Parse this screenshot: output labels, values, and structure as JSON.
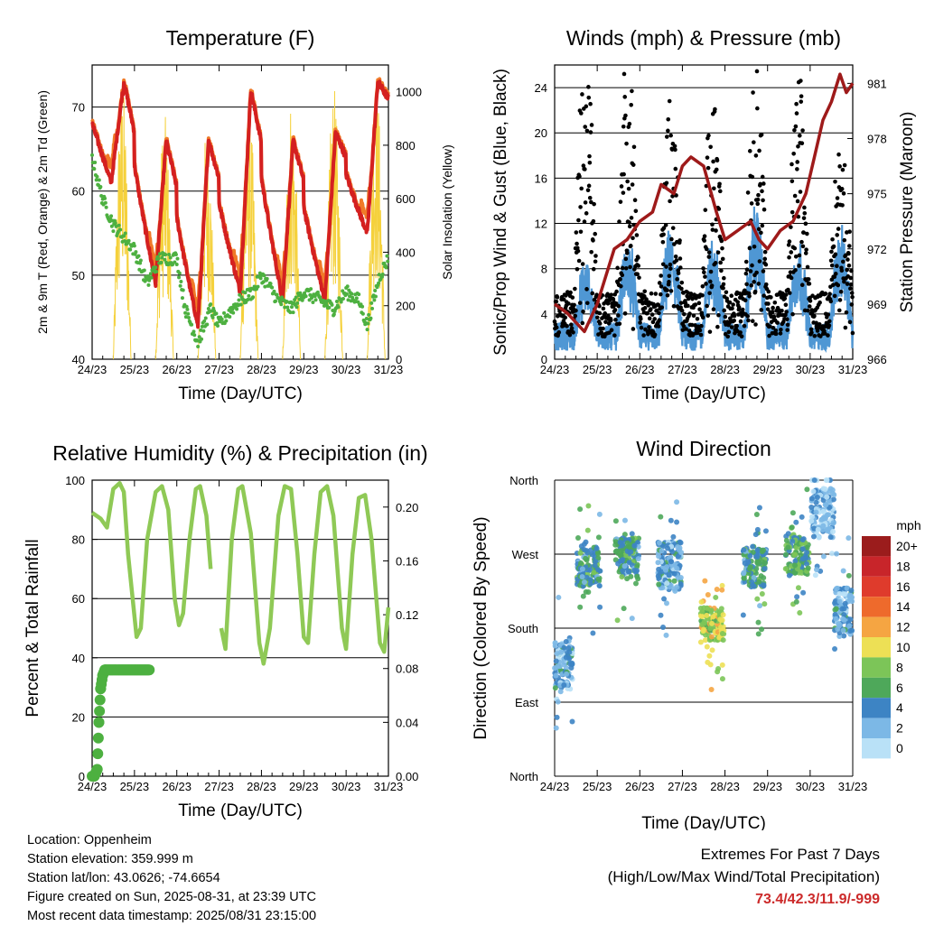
{
  "chart_data": [
    {
      "id": "temperature",
      "type": "line",
      "title": "Temperature (F)",
      "xlabel": "Time (Day/UTC)",
      "ylabel": "2m & 9m T (Red, Orange) & 2m Td (Green)",
      "y2label": "Solar Insolation (Yellow)",
      "x_ticks": [
        "24/23",
        "25/23",
        "26/23",
        "27/23",
        "28/23",
        "29/23",
        "30/23",
        "31/23"
      ],
      "ylim": [
        40,
        75
      ],
      "y_ticks": [
        40,
        50,
        60,
        70
      ],
      "y2lim": [
        0,
        1100
      ],
      "y2_ticks": [
        0,
        200,
        400,
        600,
        800,
        1000
      ],
      "grid_y": [
        40,
        50,
        60,
        70
      ],
      "series": [
        {
          "key": "t2m",
          "color": "#d42020",
          "daily_highs": [
            73,
            66,
            66,
            72,
            66,
            67,
            73
          ],
          "daily_lows": [
            53,
            49,
            44,
            48,
            47,
            47,
            55
          ],
          "start": 68,
          "end": 69
        },
        {
          "key": "t9m",
          "color": "#f07a28"
        },
        {
          "key": "td2m",
          "color": "#4db040",
          "points": [
            [
              0,
              64
            ],
            [
              0.25,
              59
            ],
            [
              0.5,
              56
            ],
            [
              1,
              53
            ],
            [
              1.3,
              49
            ],
            [
              1.6,
              52
            ],
            [
              2.0,
              52
            ],
            [
              2.2,
              46
            ],
            [
              2.5,
              42
            ],
            [
              2.8,
              46
            ],
            [
              3.0,
              44
            ],
            [
              3.3,
              46
            ],
            [
              3.5,
              47
            ],
            [
              3.8,
              48
            ],
            [
              4.0,
              50
            ],
            [
              4.4,
              47
            ],
            [
              4.7,
              46
            ],
            [
              5.0,
              48
            ],
            [
              5.4,
              47
            ],
            [
              5.7,
              46
            ],
            [
              6.0,
              48
            ],
            [
              6.3,
              47
            ],
            [
              6.5,
              44
            ],
            [
              6.8,
              50
            ],
            [
              7,
              52
            ]
          ]
        },
        {
          "key": "solar",
          "color": "#f5d13c",
          "daily_peak": [
            1050,
            920,
            870,
            960,
            1000,
            1020,
            1070
          ]
        }
      ]
    },
    {
      "id": "winds",
      "type": "scatter",
      "title": "Winds (mph) & Pressure (mb)",
      "xlabel": "Time (Day/UTC)",
      "ylabel": "Sonic/Prop Wind & Gust (Blue, Black)",
      "y2label": "Station Pressure (Maroon)",
      "x_ticks": [
        "24/23",
        "25/23",
        "26/23",
        "27/23",
        "28/23",
        "29/23",
        "30/23",
        "31/23"
      ],
      "ylim": [
        0,
        26
      ],
      "y_ticks": [
        0,
        4,
        8,
        12,
        16,
        20,
        24
      ],
      "y2lim": [
        966,
        982
      ],
      "y2_ticks": [
        966,
        969,
        972,
        975,
        978,
        981
      ],
      "grid_y": [
        4,
        8,
        12,
        16,
        20,
        24
      ],
      "series": [
        {
          "key": "wind",
          "color": "#4f97d4",
          "daily_peak": [
            6,
            8,
            9,
            8,
            11,
            8,
            9
          ]
        },
        {
          "key": "gust",
          "color": "#000000",
          "daily_peak": [
            25,
            23,
            20,
            20,
            23,
            20,
            16
          ]
        },
        {
          "key": "pressure",
          "color": "#9e1a1a",
          "points": [
            [
              0,
              969
            ],
            [
              0.3,
              968.5
            ],
            [
              0.5,
              968
            ],
            [
              0.7,
              967.5
            ],
            [
              1.0,
              969
            ],
            [
              1.4,
              972
            ],
            [
              1.7,
              972.5
            ],
            [
              2.0,
              973.5
            ],
            [
              2.3,
              974
            ],
            [
              2.5,
              975.5
            ],
            [
              2.8,
              975
            ],
            [
              3.0,
              976.5
            ],
            [
              3.2,
              977
            ],
            [
              3.5,
              976.5
            ],
            [
              3.8,
              974
            ],
            [
              4.0,
              972.5
            ],
            [
              4.3,
              973
            ],
            [
              4.6,
              973.5
            ],
            [
              4.8,
              972.5
            ],
            [
              5.0,
              972
            ],
            [
              5.3,
              973
            ],
            [
              5.6,
              973.5
            ],
            [
              5.9,
              975
            ],
            [
              6.1,
              977
            ],
            [
              6.3,
              979
            ],
            [
              6.5,
              980
            ],
            [
              6.7,
              981.5
            ],
            [
              6.85,
              980.5
            ],
            [
              7,
              981
            ]
          ]
        }
      ]
    },
    {
      "id": "humidity",
      "type": "line",
      "title": "Relative Humidity (%) & Precipitation (in)",
      "xlabel": "Time (Day/UTC)",
      "ylabel": "Percent & Total Rainfall",
      "x_ticks": [
        "24/23",
        "25/23",
        "26/23",
        "27/23",
        "28/23",
        "29/23",
        "30/23",
        "31/23"
      ],
      "ylim": [
        0,
        100
      ],
      "y_ticks": [
        0,
        20,
        40,
        60,
        80,
        100
      ],
      "y2lim": [
        0,
        0.22
      ],
      "y2_ticks": [
        "0.00",
        "0.04",
        "0.08",
        "0.12",
        "0.16",
        "0.20"
      ],
      "grid_y": [
        20,
        40,
        60,
        80
      ],
      "series": [
        {
          "key": "rh",
          "color": "#8fc956",
          "points": [
            [
              0,
              89
            ],
            [
              0.2,
              87
            ],
            [
              0.35,
              84
            ],
            [
              0.5,
              97
            ],
            [
              0.65,
              99
            ],
            [
              0.75,
              96
            ],
            [
              0.85,
              75
            ],
            [
              1.05,
              47
            ],
            [
              1.15,
              50
            ],
            [
              1.3,
              80
            ],
            [
              1.5,
              96
            ],
            [
              1.65,
              98
            ],
            [
              1.8,
              90
            ],
            [
              1.95,
              60
            ],
            [
              2.05,
              51
            ],
            [
              2.15,
              55
            ],
            [
              2.3,
              80
            ],
            [
              2.45,
              97
            ],
            [
              2.55,
              98
            ],
            [
              2.7,
              88
            ],
            [
              2.8,
              70
            ]
          ]
        },
        {
          "key": "rh2",
          "color": "#8fc956",
          "points": [
            [
              3.05,
              50
            ],
            [
              3.15,
              43
            ],
            [
              3.3,
              80
            ],
            [
              3.45,
              97
            ],
            [
              3.55,
              98
            ],
            [
              3.75,
              82
            ],
            [
              3.95,
              45
            ],
            [
              4.05,
              38
            ],
            [
              4.2,
              50
            ],
            [
              4.4,
              88
            ],
            [
              4.55,
              98
            ],
            [
              4.7,
              97
            ],
            [
              4.85,
              75
            ],
            [
              5.0,
              47
            ],
            [
              5.1,
              45
            ],
            [
              5.25,
              75
            ],
            [
              5.4,
              96
            ],
            [
              5.55,
              98
            ],
            [
              5.7,
              88
            ],
            [
              5.9,
              50
            ],
            [
              6.0,
              43
            ],
            [
              6.15,
              75
            ],
            [
              6.3,
              94
            ],
            [
              6.45,
              95
            ],
            [
              6.6,
              80
            ],
            [
              6.8,
              45
            ],
            [
              6.9,
              42
            ],
            [
              7,
              57
            ]
          ]
        },
        {
          "key": "precip",
          "color": "#4db040",
          "points": [
            [
              0,
              0
            ],
            [
              0.05,
              0
            ],
            [
              0.12,
              0.005
            ],
            [
              0.16,
              0.04
            ],
            [
              0.2,
              0.065
            ],
            [
              0.25,
              0.075
            ],
            [
              0.3,
              0.079
            ],
            [
              1.35,
              0.079
            ]
          ]
        }
      ]
    },
    {
      "id": "wind_direction",
      "type": "scatter",
      "title": "Wind Direction",
      "xlabel": "Time (Day/UTC)",
      "ylabel": "Direction (Colored By Speed)",
      "x_ticks": [
        "24/23",
        "25/23",
        "26/23",
        "27/23",
        "28/23",
        "29/23",
        "30/23",
        "31/23"
      ],
      "y_ticks": [
        "North",
        "East",
        "South",
        "West",
        "North"
      ],
      "ylim": [
        0,
        360
      ],
      "colorbar": {
        "title": "mph",
        "labels": [
          "20+",
          "18",
          "16",
          "14",
          "12",
          "10",
          "8",
          "6",
          "4",
          "2",
          "0"
        ],
        "colors": [
          "#9b1c1c",
          "#c8252a",
          "#df3b2c",
          "#ee6a2c",
          "#f5a542",
          "#ede055",
          "#7cc558",
          "#4ea85a",
          "#3d84c4",
          "#7cb8e6",
          "#b9e1f7"
        ]
      },
      "clusters": [
        {
          "day": 0.15,
          "dir": 135,
          "spread": 30,
          "speed": 3
        },
        {
          "day": 0.8,
          "dir": 255,
          "spread": 25,
          "speed": 5
        },
        {
          "day": 1.7,
          "dir": 265,
          "spread": 25,
          "speed": 5
        },
        {
          "day": 2.7,
          "dir": 255,
          "spread": 30,
          "speed": 3
        },
        {
          "day": 3.7,
          "dir": 185,
          "spread": 20,
          "speed": 9
        },
        {
          "day": 4.7,
          "dir": 255,
          "spread": 25,
          "speed": 5
        },
        {
          "day": 5.7,
          "dir": 270,
          "spread": 25,
          "speed": 6
        },
        {
          "day": 6.3,
          "dir": 320,
          "spread": 30,
          "speed": 2
        },
        {
          "day": 6.85,
          "dir": 200,
          "spread": 30,
          "speed": 3
        }
      ]
    }
  ],
  "footer": {
    "location": "Location: Oppenheim",
    "elevation": "Station elevation: 359.999 m",
    "latlon": "Station lat/lon: 43.0626; -74.6654",
    "created": "Figure created on Sun, 2025-08-31, at 23:39 UTC",
    "recent": "Most recent data timestamp: 2025/08/31 23:15:00"
  },
  "extremes": {
    "title": "Extremes For Past 7 Days",
    "subtitle": "(High/Low/Max Wind/Total Precipitation)",
    "values": "73.4/42.3/11.9/-999",
    "values_color": "#cc2a2a"
  }
}
